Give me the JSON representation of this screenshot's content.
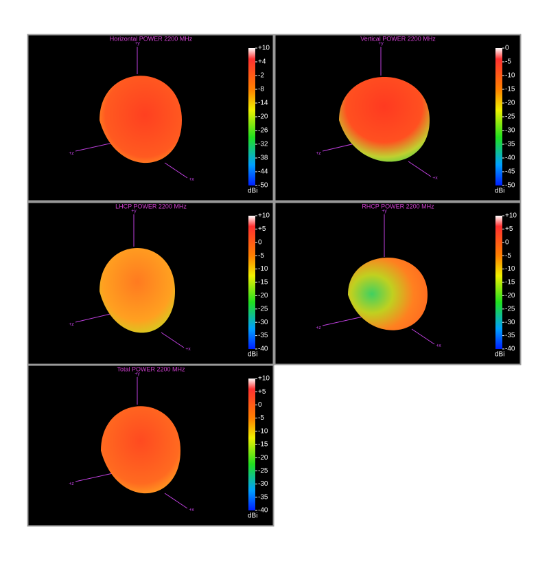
{
  "axis_labels": {
    "y": "+y",
    "z": "+z",
    "x": "+x"
  },
  "panels": [
    {
      "title": "Horizontal POWER 2200  MHz",
      "unit": "dBi",
      "clim": [
        -50,
        10
      ],
      "ticks": [
        {
          "value": 10,
          "label": "+10"
        },
        {
          "value": 4,
          "label": "+4"
        },
        -2,
        -8,
        -14,
        -20,
        -26,
        -32,
        -38,
        -44,
        -50
      ]
    },
    {
      "title": "Vertical POWER 2200  MHz",
      "unit": "dBi",
      "clim": [
        -50,
        0
      ],
      "ticks": [
        0,
        -5,
        -10,
        -15,
        -20,
        -25,
        -30,
        -35,
        -40,
        -45,
        -50
      ]
    },
    {
      "title": "LHCP POWER 2200  MHz",
      "unit": "dBi",
      "clim": [
        -40,
        10
      ],
      "ticks": [
        {
          "value": 10,
          "label": "+10"
        },
        {
          "value": 5,
          "label": "+5"
        },
        0,
        -5,
        -10,
        -15,
        -20,
        -25,
        -30,
        -35,
        -40
      ]
    },
    {
      "title": "RHCP POWER 2200  MHz",
      "unit": "dBi",
      "clim": [
        -40,
        10
      ],
      "ticks": [
        {
          "value": 10,
          "label": "+10"
        },
        {
          "value": 5,
          "label": "+5"
        },
        0,
        -5,
        -10,
        -15,
        -20,
        -25,
        -30,
        -35,
        -40
      ]
    },
    {
      "title": "Total POWER 2200  MHz",
      "unit": "dBi",
      "clim": [
        -40,
        10
      ],
      "ticks": [
        {
          "value": 10,
          "label": "+10"
        },
        {
          "value": 5,
          "label": "+5"
        },
        0,
        -5,
        -10,
        -15,
        -20,
        -25,
        -30,
        -35,
        -40
      ]
    }
  ]
}
